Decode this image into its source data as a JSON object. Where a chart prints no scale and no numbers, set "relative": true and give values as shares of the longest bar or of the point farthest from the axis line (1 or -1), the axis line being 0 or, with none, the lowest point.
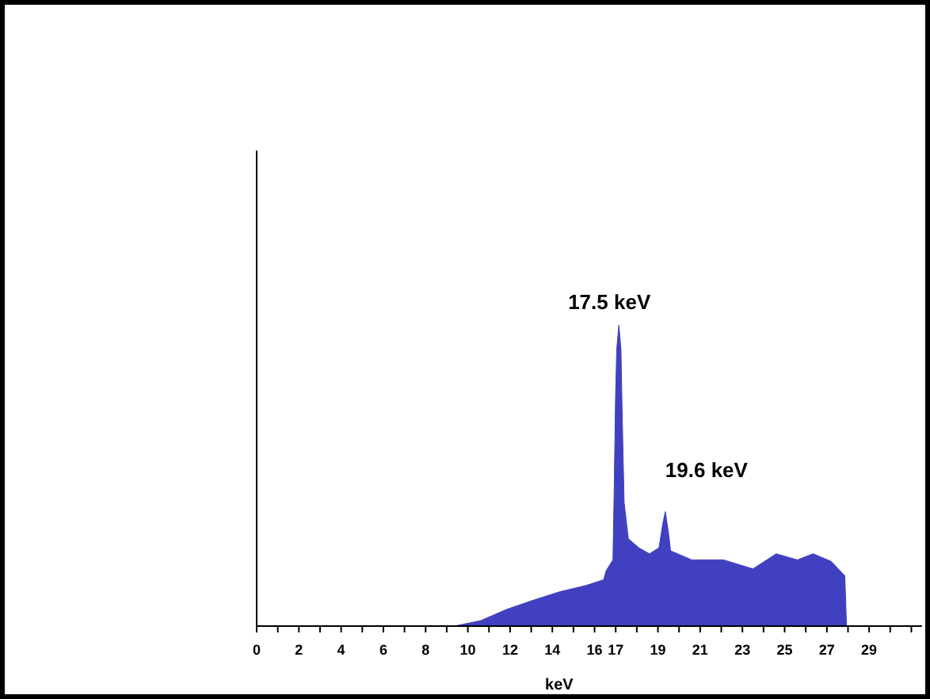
{
  "chart_data": {
    "type": "area",
    "relative": true,
    "xlabel": "keV",
    "color": "#4040c0",
    "xlim": [
      0,
      31.5
    ],
    "xticks": [
      0,
      {
        "value": 1,
        "label": null
      },
      2,
      {
        "value": 3,
        "label": null
      },
      4,
      {
        "value": 5,
        "label": null
      },
      6,
      {
        "value": 7,
        "label": null
      },
      8,
      {
        "value": 9,
        "label": null
      },
      10,
      {
        "value": 11,
        "label": null
      },
      12,
      {
        "value": 13,
        "label": null
      },
      14,
      {
        "value": 15,
        "label": null
      },
      16,
      17,
      {
        "value": 18,
        "label": null
      },
      19,
      {
        "value": 20,
        "label": null
      },
      21,
      {
        "value": 22,
        "label": null
      },
      23,
      {
        "value": 24,
        "label": null
      },
      25,
      {
        "value": 26,
        "label": null
      },
      27,
      {
        "value": 28,
        "label": null
      },
      29,
      {
        "value": 30,
        "label": null
      },
      {
        "value": 31,
        "label": null
      }
    ],
    "x": [
      9.35,
      10.6,
      11.85,
      13.1,
      14.35,
      15.6,
      16.43,
      16.55,
      16.87,
      16.93,
      16.99,
      17.05,
      17.15,
      17.25,
      17.3,
      17.4,
      17.6,
      18.1,
      18.6,
      19.05,
      19.23,
      19.35,
      19.5,
      19.6,
      20.6,
      22.1,
      23.5,
      24.6,
      25.6,
      26.35,
      27.2,
      27.85,
      27.93
    ],
    "values": [
      0,
      0.018,
      0.056,
      0.086,
      0.114,
      0.135,
      0.154,
      0.184,
      0.22,
      0.46,
      0.75,
      0.92,
      1,
      0.92,
      0.73,
      0.41,
      0.29,
      0.26,
      0.24,
      0.26,
      0.34,
      0.38,
      0.31,
      0.25,
      0.22,
      0.22,
      0.19,
      0.24,
      0.22,
      0.24,
      0.215,
      0.167,
      0
    ],
    "annotations": [
      "17.5 keV",
      "19.6 keV"
    ]
  }
}
